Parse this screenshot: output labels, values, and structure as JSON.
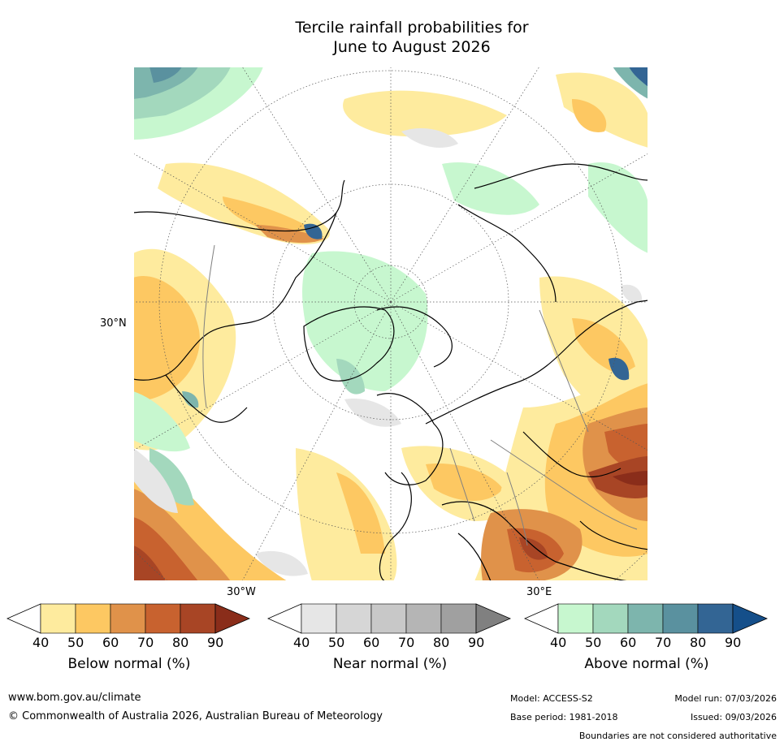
{
  "title_line1": "Tercile rainfall probabilities for",
  "title_line2": "June to August 2026",
  "map": {
    "lat_label": "30°N",
    "lon_label_left": "30°W",
    "lon_label_right": "30°E"
  },
  "colorbars": [
    {
      "name": "below",
      "title": "Below normal (%)",
      "ticks": [
        "40",
        "50",
        "60",
        "70",
        "80",
        "90"
      ],
      "colors": [
        "#ffffff",
        "#feeb9e",
        "#fdc862",
        "#e0924a",
        "#c8622f",
        "#a84525",
        "#8a2d1a"
      ]
    },
    {
      "name": "near",
      "title": "Near normal (%)",
      "ticks": [
        "40",
        "50",
        "60",
        "70",
        "80",
        "90"
      ],
      "colors": [
        "#ffffff",
        "#e6e6e6",
        "#d6d6d6",
        "#c8c8c8",
        "#b5b5b5",
        "#a0a0a0",
        "#808080"
      ]
    },
    {
      "name": "above",
      "title": "Above normal (%)",
      "ticks": [
        "40",
        "50",
        "60",
        "70",
        "80",
        "90"
      ],
      "colors": [
        "#ffffff",
        "#c7f7cf",
        "#a3d8bd",
        "#7db5ad",
        "#5a919f",
        "#336594",
        "#154f8a"
      ]
    }
  ],
  "footer": {
    "website": "www.bom.gov.au/climate",
    "copyright": "© Commonwealth of Australia 2026, Australian Bureau of Meteorology",
    "model": "Model: ACCESS-S2",
    "base_period": "Base period: 1981-2018",
    "model_run": "Model run: 07/03/2026",
    "issued": "Issued: 09/03/2026",
    "disclaimer": "Boundaries are not considered authoritative"
  }
}
